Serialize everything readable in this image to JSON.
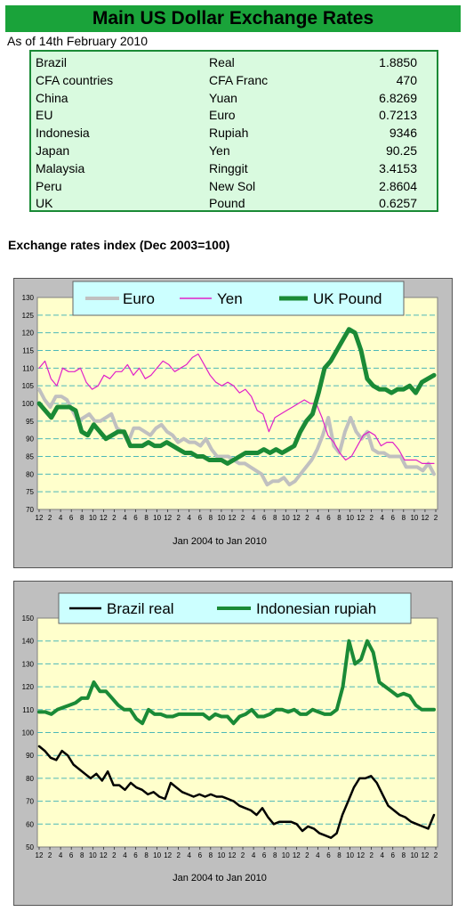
{
  "header": {
    "title": "Main US Dollar Exchange Rates",
    "as_of": "As of 14th February 2010"
  },
  "rates_table": [
    {
      "country": "Brazil",
      "currency": "Real",
      "rate": "1.8850"
    },
    {
      "country": "CFA countries",
      "currency": "CFA Franc",
      "rate": "470"
    },
    {
      "country": "China",
      "currency": "Yuan",
      "rate": "6.8269"
    },
    {
      "country": "EU",
      "currency": "Euro",
      "rate": "0.7213"
    },
    {
      "country": "Indonesia",
      "currency": "Rupiah",
      "rate": "9346"
    },
    {
      "country": "Japan",
      "currency": "Yen",
      "rate": "90.25"
    },
    {
      "country": "Malaysia",
      "currency": "Ringgit",
      "rate": "3.4153"
    },
    {
      "country": "Peru",
      "currency": "New Sol",
      "rate": "2.8604"
    },
    {
      "country": "UK",
      "currency": "Pound",
      "rate": "0.6257"
    }
  ],
  "section_heading": "Exchange rates index (Dec 2003=100)",
  "colors": {
    "title_bg": "#1aa33a",
    "table_bg": "#d9fadf",
    "table_border": "#1a8a36",
    "panel_bg": "#bfbfbf",
    "plot_bg": "#ffffcc",
    "legend_bg": "#ccffff",
    "gridline": "#4db8b8"
  },
  "chart_data": [
    {
      "type": "line",
      "title": "",
      "xlabel": "Jan 2004  to Jan 2010",
      "ylabel": "",
      "ylim": [
        70,
        130
      ],
      "yticks": [
        70,
        75,
        80,
        85,
        90,
        95,
        100,
        105,
        110,
        115,
        120,
        125,
        130
      ],
      "xtick_labels": [
        "12",
        "2",
        "4",
        "6",
        "8",
        "10",
        "12",
        "2",
        "4",
        "6",
        "8",
        "10",
        "12",
        "2",
        "4",
        "6",
        "8",
        "10",
        "12",
        "2",
        "4",
        "6",
        "8",
        "10",
        "12",
        "2",
        "4",
        "6",
        "8",
        "10",
        "12",
        "2",
        "4",
        "6",
        "8",
        "10",
        "12",
        "2"
      ],
      "grid": true,
      "legend_position": "top",
      "series": [
        {
          "name": "Euro",
          "color": "#c0c0c0",
          "width": 4,
          "values": [
            104,
            101,
            99,
            102,
            102,
            101,
            98,
            95,
            96,
            97,
            95,
            95,
            96,
            97,
            93,
            92,
            89,
            93,
            93,
            92,
            91,
            93,
            94,
            92,
            91,
            89,
            90,
            89,
            89,
            88,
            90,
            87,
            85,
            85,
            85,
            84,
            83,
            83,
            82,
            81,
            80,
            77,
            78,
            78,
            79,
            77,
            78,
            80,
            82,
            84,
            87,
            91,
            96,
            88,
            86,
            92,
            96,
            92,
            90,
            92,
            87,
            86,
            86,
            85,
            85,
            85,
            82,
            82,
            82,
            81,
            83,
            80
          ]
        },
        {
          "name": "Yen",
          "color": "#e020c8",
          "width": 1.2,
          "values": [
            110,
            112,
            107,
            105,
            110,
            109,
            109,
            110,
            106,
            104,
            105,
            108,
            107,
            109,
            109,
            111,
            108,
            110,
            107,
            108,
            110,
            112,
            111,
            109,
            110,
            111,
            113,
            114,
            111,
            108,
            106,
            105,
            106,
            105,
            103,
            104,
            102,
            98,
            97,
            92,
            96,
            97,
            98,
            99,
            100,
            101,
            100,
            100,
            96,
            91,
            89,
            86,
            84,
            85,
            88,
            91,
            92,
            91,
            88,
            89,
            89,
            87,
            84,
            84,
            84,
            83,
            83,
            83
          ]
        },
        {
          "name": "UK Pound",
          "color": "#1a8a36",
          "width": 5,
          "values": [
            100,
            98,
            96,
            99,
            99,
            99,
            98,
            92,
            91,
            94,
            92,
            90,
            91,
            92,
            92,
            88,
            88,
            88,
            89,
            88,
            88,
            89,
            88,
            87,
            86,
            86,
            85,
            85,
            84,
            84,
            84,
            83,
            84,
            85,
            86,
            86,
            86,
            87,
            86,
            87,
            86,
            87,
            88,
            92,
            95,
            97,
            103,
            110,
            112,
            115,
            118,
            121,
            120,
            115,
            107,
            105,
            104,
            104,
            103,
            104,
            104,
            105,
            103,
            106,
            107,
            108
          ]
        }
      ]
    },
    {
      "type": "line",
      "title": "",
      "xlabel": "Jan 2004  to Jan   2010",
      "ylabel": "",
      "ylim": [
        50,
        150
      ],
      "yticks": [
        50,
        60,
        70,
        80,
        90,
        100,
        110,
        120,
        130,
        140,
        150
      ],
      "xtick_labels": [
        "12",
        "2",
        "4",
        "6",
        "8",
        "10",
        "12",
        "2",
        "4",
        "6",
        "8",
        "10",
        "12",
        "2",
        "4",
        "6",
        "8",
        "10",
        "12",
        "2",
        "4",
        "6",
        "8",
        "10",
        "12",
        "2",
        "4",
        "6",
        "8",
        "10",
        "12",
        "2",
        "4",
        "6",
        "8",
        "10",
        "12",
        "2"
      ],
      "grid": true,
      "legend_position": "top",
      "series": [
        {
          "name": "Brazil real",
          "color": "#000000",
          "width": 2.5,
          "values": [
            94,
            92,
            89,
            88,
            92,
            90,
            86,
            84,
            82,
            80,
            82,
            79,
            83,
            77,
            77,
            75,
            78,
            76,
            75,
            73,
            74,
            72,
            71,
            78,
            76,
            74,
            73,
            72,
            73,
            72,
            73,
            72,
            72,
            71,
            70,
            68,
            67,
            66,
            64,
            67,
            63,
            60,
            61,
            61,
            61,
            60,
            57,
            59,
            58,
            56,
            55,
            54,
            56,
            64,
            70,
            76,
            80,
            80,
            81,
            78,
            73,
            68,
            66,
            64,
            63,
            61,
            60,
            59,
            58,
            64
          ]
        },
        {
          "name": "Indonesian rupiah",
          "color": "#1a8a36",
          "width": 4,
          "values": [
            109,
            109,
            108,
            110,
            111,
            112,
            113,
            115,
            115,
            122,
            118,
            118,
            115,
            112,
            110,
            110,
            106,
            104,
            110,
            108,
            108,
            107,
            107,
            108,
            108,
            108,
            108,
            108,
            106,
            108,
            107,
            107,
            104,
            107,
            108,
            110,
            107,
            107,
            108,
            110,
            110,
            109,
            110,
            108,
            108,
            110,
            109,
            108,
            108,
            110,
            120,
            140,
            130,
            132,
            140,
            135,
            122,
            120,
            118,
            116,
            117,
            116,
            112,
            110,
            110,
            110
          ]
        }
      ]
    }
  ]
}
